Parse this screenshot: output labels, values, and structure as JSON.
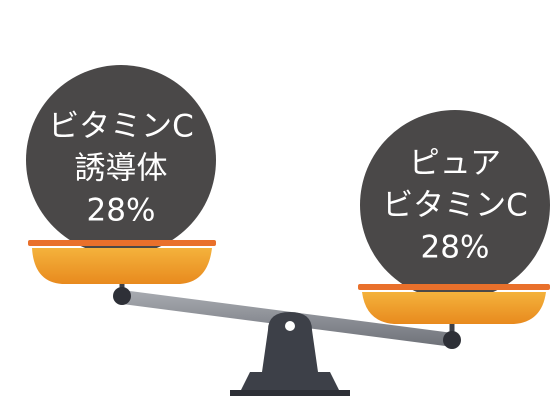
{
  "left_pan": {
    "lines": [
      "ビタミンC",
      "誘導体",
      "28%"
    ]
  },
  "right_pan": {
    "lines": [
      "ピュア",
      "ビタミンC",
      "28%"
    ]
  }
}
